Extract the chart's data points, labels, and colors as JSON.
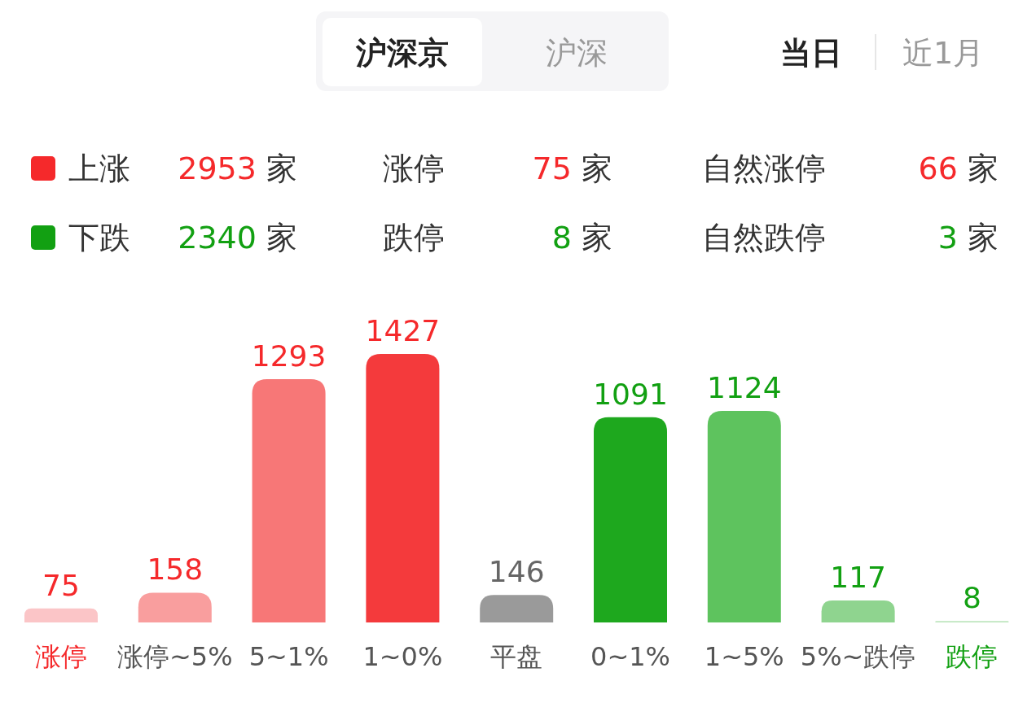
{
  "chart_data": {
    "type": "bar",
    "data_labels": true,
    "categories": [
      "涨停",
      "涨停~5%",
      "5~1%",
      "1~0%",
      "平盘",
      "0~1%",
      "1~5%",
      "5%~跌停",
      "跌停"
    ],
    "values": [
      75,
      158,
      1293,
      1427,
      146,
      1091,
      1124,
      117,
      8
    ],
    "colors": [
      "#fbc5c7",
      "#f99e9e",
      "#f77777",
      "#f43a3c",
      "#9a9a9a",
      "#1ea81e",
      "#5ec35e",
      "#8fd48f",
      "#bfe6bf"
    ],
    "annotations": [
      "沪深京",
      "沪深",
      "当日",
      "近1月",
      "上涨",
      "2953 家",
      "涨停",
      "75 家",
      "自然涨停",
      "66 家",
      "下跌",
      "2340 家",
      "跌停",
      "8 家",
      "自然跌停",
      "3 家"
    ]
  }
}
